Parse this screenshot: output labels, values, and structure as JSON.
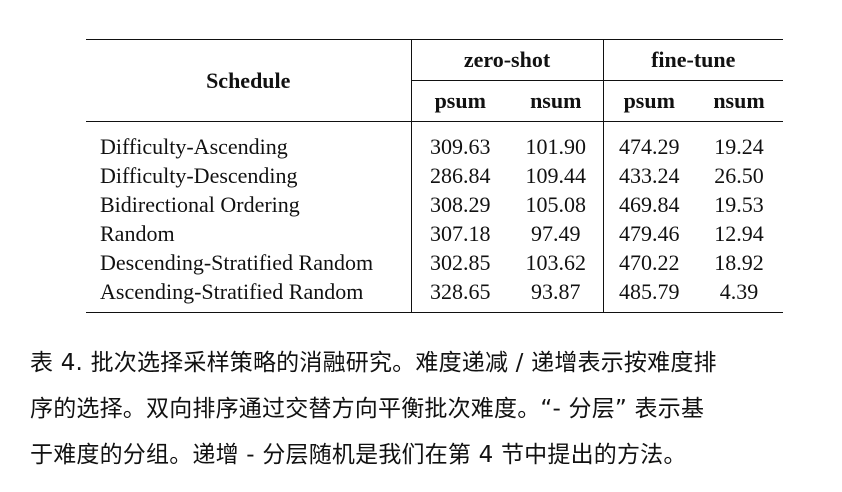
{
  "table": {
    "schedule_header": "Schedule",
    "groups": [
      "zero-shot",
      "fine-tune"
    ],
    "metrics": [
      "psum",
      "nsum",
      "psum",
      "nsum"
    ],
    "rows": [
      {
        "name": "Difficulty-Ascending",
        "values": [
          "309.63",
          "101.90",
          "474.29",
          "19.24"
        ]
      },
      {
        "name": "Difficulty-Descending",
        "values": [
          "286.84",
          "109.44",
          "433.24",
          "26.50"
        ]
      },
      {
        "name": "Bidirectional Ordering",
        "values": [
          "308.29",
          "105.08",
          "469.84",
          "19.53"
        ]
      },
      {
        "name": "Random",
        "values": [
          "307.18",
          "97.49",
          "479.46",
          "12.94"
        ]
      },
      {
        "name": "Descending-Stratified Random",
        "values": [
          "302.85",
          "103.62",
          "470.22",
          "18.92"
        ]
      },
      {
        "name": "Ascending-Stratified Random",
        "values": [
          "328.65",
          "93.87",
          "485.79",
          "4.39"
        ]
      }
    ]
  },
  "caption": {
    "lines": [
      "表 4. 批次选择采样策略的消融研究。难度递减 / 递增表示按难度排",
      "序的选择。双向排序通过交替方向平衡批次难度。“- 分层” 表示基",
      "于难度的分组。递增 - 分层随机是我们在第 4 节中提出的方法。"
    ]
  }
}
